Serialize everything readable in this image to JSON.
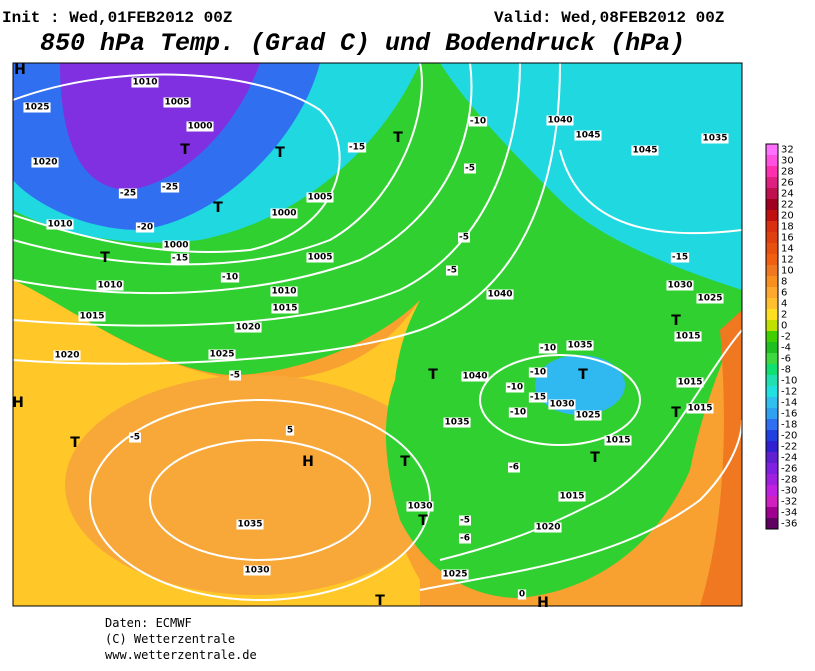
{
  "header": {
    "init": "Init : Wed,01FEB2012 00Z",
    "valid": "Valid: Wed,08FEB2012 00Z",
    "title": "850 hPa Temp. (Grad C) und Bodendruck (hPa)"
  },
  "footer": {
    "lines": [
      "Daten: ECMWF",
      "(C) Wetterzentrale",
      "www.wetterzentrale.de"
    ]
  },
  "colorbar": {
    "labels": [
      "32",
      "30",
      "28",
      "26",
      "24",
      "22",
      "20",
      "18",
      "16",
      "14",
      "12",
      "10",
      "8",
      "6",
      "4",
      "2",
      "0",
      "-2",
      "-4",
      "-6",
      "-8",
      "-10",
      "-12",
      "-14",
      "-16",
      "-18",
      "-20",
      "-22",
      "-24",
      "-26",
      "-28",
      "-30",
      "-32",
      "-34",
      "-36"
    ],
    "colors": [
      "#ff70ff",
      "#ff50e0",
      "#ff30b0",
      "#e02080",
      "#c01050",
      "#a00020",
      "#c01010",
      "#d83010",
      "#e04010",
      "#e85010",
      "#f06010",
      "#f07820",
      "#f89020",
      "#ffa830",
      "#ffc030",
      "#ffe020",
      "#c0e000",
      "#40d000",
      "#20c020",
      "#40d840",
      "#10e070",
      "#20e0b0",
      "#20e0e0",
      "#30c0f0",
      "#30a0f0",
      "#3070f0",
      "#2040e0",
      "#3020d0",
      "#6020d0",
      "#8020e0",
      "#a020e0",
      "#c020e0",
      "#d020c0",
      "#a00090",
      "#600060"
    ]
  },
  "map_labels": [
    "1025",
    "1020",
    "1010",
    "1005",
    "1000",
    "-25",
    "-25",
    "-20",
    "1010",
    "1000",
    "-15",
    "1000",
    "1005",
    "-10",
    "1010",
    "1010",
    "1015",
    "1015",
    "1020",
    "1025",
    "1020",
    "-5",
    "-5",
    "5",
    "1035",
    "1030",
    "1030",
    "1025",
    "1040",
    "1040",
    "1035",
    "1045",
    "1045",
    "1040",
    "1035",
    "-15",
    "1030",
    "1025",
    "1015",
    "1015",
    "1015",
    "1015",
    "1015",
    "1020",
    "1025",
    "1030",
    "1035",
    "-10",
    "-10",
    "-15",
    "-10",
    "-6",
    "-5",
    "-6",
    "-10",
    "-5",
    "-5",
    "-5",
    "-15",
    "1005",
    "0",
    "-10"
  ],
  "map_symbols": [
    "H",
    "T",
    "T",
    "T",
    "T",
    "T",
    "T",
    "H",
    "T",
    "T",
    "T",
    "T",
    "T",
    "T",
    "T",
    "T",
    "H",
    "H"
  ]
}
